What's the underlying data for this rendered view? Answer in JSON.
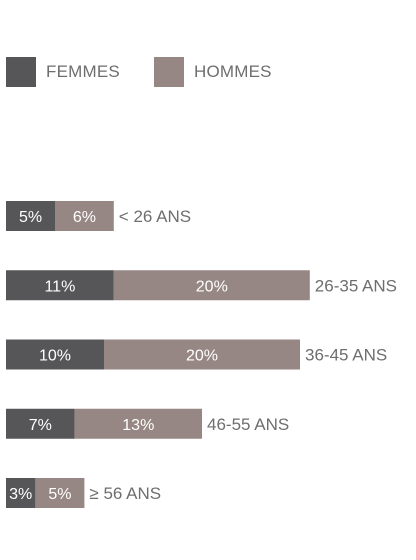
{
  "colors": {
    "femmes": "#565658",
    "hommes": "#978784",
    "label": "#6e6e6e",
    "bar_text": "#ffffff"
  },
  "legend": [
    {
      "label": "FEMMES",
      "color": "#565658"
    },
    {
      "label": "HOMMES",
      "color": "#978784"
    }
  ],
  "chart_data": {
    "type": "bar",
    "orientation": "horizontal",
    "stacked": true,
    "categories": [
      "< 26 ANS",
      "26-35 ANS",
      "36-45 ANS",
      "46-55 ANS",
      "≥ 56 ANS"
    ],
    "series": [
      {
        "name": "FEMMES",
        "values": [
          5,
          11,
          10,
          7,
          3
        ],
        "labels": [
          "5%",
          "11%",
          "10%",
          "7%",
          "3%"
        ]
      },
      {
        "name": "HOMMES",
        "values": [
          6,
          20,
          20,
          13,
          5
        ],
        "labels": [
          "6%",
          "20%",
          "20%",
          "13%",
          "5%"
        ]
      }
    ],
    "unit": "%",
    "legend_position": "top-left",
    "grid": false
  }
}
